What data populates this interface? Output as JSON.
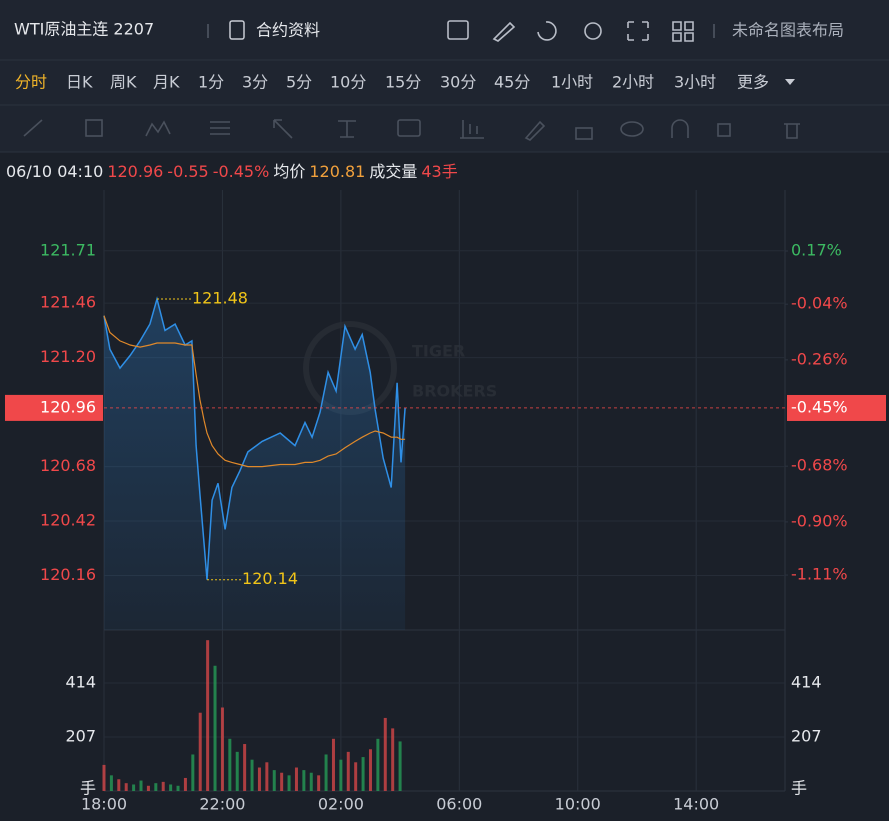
{
  "toolbar": {
    "title": "WTI原油主连 2207",
    "contract_info": "合约资料",
    "layout_name": "未命名图表布局",
    "periods": [
      "分时",
      "日K",
      "周K",
      "月K",
      "1分",
      "3分",
      "5分",
      "10分",
      "15分",
      "30分",
      "45分",
      "1小时",
      "2小时",
      "3小时"
    ],
    "more": "更多"
  },
  "info": {
    "time": "06/10 04:10",
    "price": "120.96",
    "change": "-0.55",
    "change_pct": "-0.45%",
    "avg_label": "均价",
    "avg": "120.81",
    "volume_label": "成交量",
    "volume": "43手"
  },
  "watermark": [
    "TIGER",
    "BROKERS"
  ],
  "chart_data": {
    "type": "line",
    "x": [
      0,
      0.2,
      0.54,
      0.88,
      1.22,
      1.55,
      1.79,
      2.06,
      2.4,
      2.74,
      2.97,
      3.11,
      3.24,
      3.38,
      3.48,
      3.65,
      3.85,
      4.09,
      4.32,
      4.59,
      4.86,
      5.34,
      5.95,
      6.45,
      6.79,
      7.03,
      7.3,
      7.57,
      7.84,
      8.14,
      8.48,
      8.72,
      8.99,
      9.16,
      9.43,
      9.7,
      9.83,
      9.9,
      10.03,
      10.17
    ],
    "series": [
      {
        "color": "#2f8fe6",
        "values": [
          121.4,
          121.24,
          121.15,
          121.21,
          121.28,
          121.36,
          121.48,
          121.33,
          121.36,
          121.26,
          121.28,
          120.78,
          120.55,
          120.31,
          120.14,
          120.52,
          120.6,
          120.38,
          120.58,
          120.66,
          120.75,
          120.8,
          120.84,
          120.78,
          120.89,
          120.82,
          120.94,
          121.13,
          121.04,
          121.35,
          121.24,
          121.31,
          121.13,
          120.95,
          120.72,
          120.58,
          120.91,
          121.08,
          120.7,
          120.96
        ]
      },
      {
        "color": "#e0892a",
        "values": [
          121.4,
          121.32,
          121.28,
          121.26,
          121.25,
          121.26,
          121.27,
          121.27,
          121.27,
          121.26,
          121.26,
          121.12,
          121.0,
          120.9,
          120.84,
          120.78,
          120.74,
          120.71,
          120.7,
          120.69,
          120.68,
          120.68,
          120.69,
          120.69,
          120.7,
          120.7,
          120.71,
          120.73,
          120.74,
          120.77,
          120.8,
          120.82,
          120.84,
          120.85,
          120.84,
          120.82,
          120.82,
          120.82,
          120.81,
          120.81
        ]
      }
    ],
    "xlim": [
      0,
      23
    ],
    "xticks": [
      {
        "value": 0,
        "label": "18:00"
      },
      {
        "value": 4,
        "label": "22:00"
      },
      {
        "value": 8,
        "label": "02:00"
      },
      {
        "value": 12,
        "label": "06:00"
      },
      {
        "value": 16,
        "label": "10:00"
      },
      {
        "value": 20,
        "label": "14:00"
      }
    ],
    "ylim": [
      119.9,
      122.0
    ],
    "yticks": [
      121.71,
      121.46,
      {
        "value": 121.2,
        "label": "121.20"
      },
      120.68,
      120.42,
      120.16
    ],
    "ytick_colors": [
      "#3cba62",
      "#f0484a",
      "#f0484a",
      "#f0484a",
      "#f0484a",
      "#f0484a"
    ],
    "y2lim": [
      -1.327,
      0.411
    ],
    "y2ticks": [
      {
        "value": 0.17,
        "label": "0.17%"
      },
      {
        "value": -0.04,
        "label": "-0.04%"
      },
      {
        "value": -0.26,
        "label": "-0.26%"
      },
      {
        "value": -0.68,
        "label": "-0.68%"
      },
      {
        "value": -0.9,
        "label": "-0.90%"
      },
      {
        "value": -1.11,
        "label": "-1.11%"
      }
    ],
    "current": {
      "value": 120.96,
      "pct": {
        "value": -0.45,
        "label": "-0.45%"
      },
      "color": "#f0484a"
    },
    "annotations": [
      {
        "x": 1.79,
        "value": 121.48
      },
      {
        "x": 3.48,
        "value": 120.14
      }
    ],
    "grid": true,
    "volume": {
      "unit": "手",
      "ylim": [
        0,
        617
      ],
      "yticks": [
        207,
        414
      ],
      "x": [
        0,
        0.25,
        0.5,
        0.75,
        1,
        1.25,
        1.5,
        1.75,
        2,
        2.25,
        2.5,
        2.75,
        3,
        3.25,
        3.5,
        3.75,
        4,
        4.25,
        4.5,
        4.75,
        5,
        5.25,
        5.5,
        5.75,
        6,
        6.25,
        6.5,
        6.75,
        7,
        7.25,
        7.5,
        7.75,
        8,
        8.25,
        8.5,
        8.75,
        9,
        9.25,
        9.5,
        9.75,
        10
      ],
      "values": [
        100,
        60,
        45,
        30,
        25,
        40,
        20,
        30,
        35,
        25,
        20,
        50,
        140,
        300,
        578,
        480,
        320,
        200,
        150,
        180,
        120,
        90,
        110,
        80,
        70,
        60,
        90,
        80,
        70,
        60,
        140,
        200,
        120,
        150,
        110,
        130,
        160,
        200,
        280,
        240,
        190
      ],
      "colors": [
        "#e0484a",
        "#27a35a",
        "#e0484a",
        "#e0484a",
        "#27a35a",
        "#27a35a",
        "#e0484a",
        "#27a35a",
        "#e0484a",
        "#27a35a",
        "#27a35a",
        "#e0484a",
        "#27a35a",
        "#e0484a",
        "#e0484a",
        "#27a35a",
        "#e0484a",
        "#27a35a",
        "#27a35a",
        "#e0484a",
        "#27a35a",
        "#e0484a",
        "#e0484a",
        "#27a35a",
        "#e0484a",
        "#27a35a",
        "#e0484a",
        "#27a35a",
        "#27a35a",
        "#e0484a",
        "#27a35a",
        "#e0484a",
        "#27a35a",
        "#e0484a",
        "#e0484a",
        "#27a35a",
        "#e0484a",
        "#27a35a",
        "#e0484a",
        "#e0484a",
        "#27a35a"
      ]
    }
  }
}
